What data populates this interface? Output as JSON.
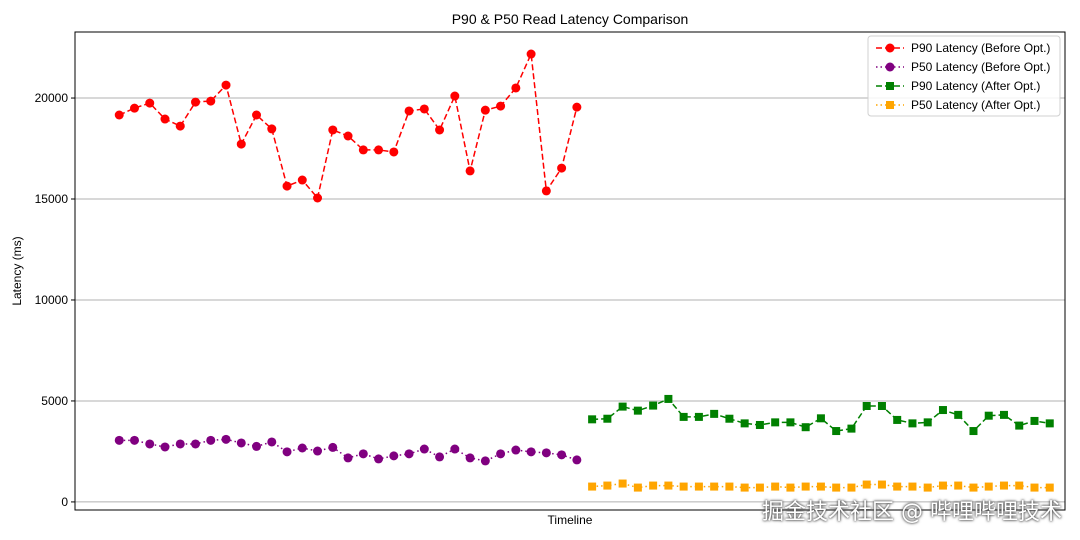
{
  "chart_data": {
    "type": "line",
    "title": "P90 & P50 Read Latency Comparison",
    "xlabel": "Timeline",
    "ylabel": "Latency (ms)",
    "xlim": [
      -2.9,
      62
    ],
    "ylim": [
      -400,
      23270
    ],
    "yticks": [
      0,
      5000,
      10000,
      15000,
      20000
    ],
    "ytick_labels": [
      "0",
      "5000",
      "10000",
      "15000",
      "20000"
    ],
    "grid": "horizontal",
    "legend_position": "top-right",
    "series": [
      {
        "name": "P90 Latency (Before Opt.)",
        "color": "#ff0000",
        "marker": "circle",
        "linestyle": "dashed",
        "x_start": 0,
        "values": [
          19160,
          19500,
          19750,
          18960,
          18610,
          19800,
          19850,
          20640,
          17720,
          19160,
          18470,
          15640,
          15940,
          15050,
          18420,
          18120,
          17430,
          17430,
          17330,
          19360,
          19460,
          18420,
          20100,
          16390,
          19400,
          19600,
          20500,
          22180,
          15400,
          16530,
          19550
        ]
      },
      {
        "name": "P50 Latency (Before Opt.)",
        "color": "#800080",
        "marker": "circle",
        "linestyle": "dotted",
        "x_start": 0,
        "values": [
          3050,
          3050,
          2870,
          2720,
          2870,
          2870,
          3050,
          3100,
          2920,
          2750,
          2970,
          2480,
          2670,
          2520,
          2700,
          2180,
          2380,
          2130,
          2280,
          2380,
          2620,
          2230,
          2620,
          2180,
          2030,
          2380,
          2570,
          2480,
          2430,
          2330,
          2080
        ]
      },
      {
        "name": "P90 Latency (After Opt.)",
        "color": "#008000",
        "marker": "square",
        "linestyle": "dashed",
        "x_start": 31,
        "values": [
          4090,
          4120,
          4720,
          4520,
          4770,
          5100,
          4210,
          4210,
          4360,
          4120,
          3890,
          3810,
          3940,
          3940,
          3700,
          4140,
          3510,
          3630,
          4750,
          4750,
          4060,
          3890,
          3940,
          4550,
          4310,
          3510,
          4270,
          4310,
          3780,
          4010,
          3890
        ]
      },
      {
        "name": "P50 Latency (After Opt.)",
        "color": "#ffa500",
        "marker": "square",
        "linestyle": "dotted",
        "x_start": 31,
        "values": [
          760,
          810,
          910,
          710,
          810,
          810,
          760,
          760,
          760,
          760,
          710,
          710,
          760,
          710,
          760,
          760,
          710,
          710,
          860,
          860,
          760,
          760,
          710,
          810,
          810,
          710,
          760,
          810,
          810,
          710,
          710
        ]
      }
    ]
  },
  "watermark": "掘金技术社区 @ 哔哩哔哩技术"
}
